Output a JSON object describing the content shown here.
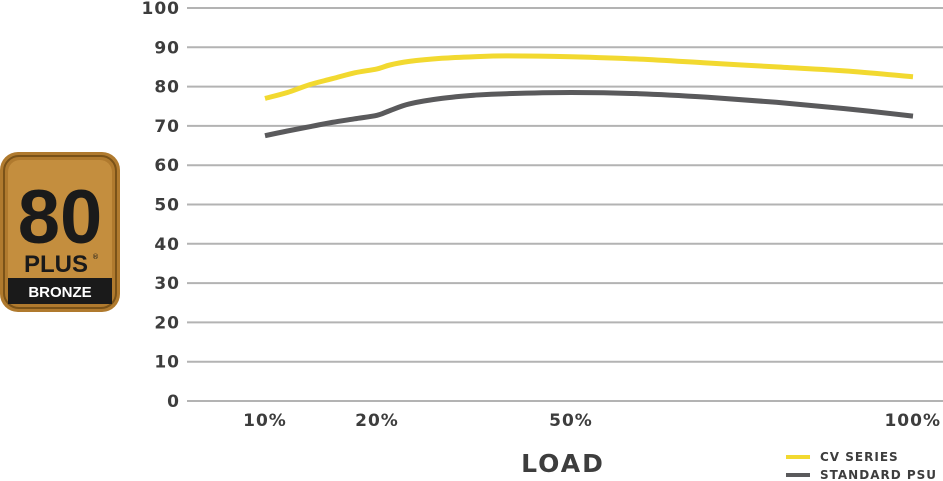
{
  "colors": {
    "cv_series": "#f2d930",
    "standard_psu": "#5a5a5c",
    "grid": "#b3b3b3",
    "text": "#3d3d3d",
    "badge_bronze": "#b07a2e",
    "badge_bronze_light": "#c48e3e",
    "badge_dark": "#1a1a1a"
  },
  "badge": {
    "number": "80",
    "plus": "PLUS",
    "reg": "®",
    "tier": "BRONZE"
  },
  "chart_data": {
    "type": "line",
    "title": "",
    "xlabel": "LOAD",
    "ylabel": "",
    "ylim": [
      0,
      100
    ],
    "yticks": [
      "0",
      "10",
      "20",
      "30",
      "40",
      "50",
      "60",
      "70",
      "80",
      "90",
      "100"
    ],
    "grid": true,
    "legend_position": "bottom-right",
    "x_tick_labels": [
      "10%",
      "20%",
      "50%",
      "100%"
    ],
    "series": [
      {
        "name": "CV SERIES",
        "color": "#f2d930",
        "x": [
          10,
          12,
          14,
          16,
          18,
          20,
          22,
          25,
          30,
          35,
          40,
          50,
          60,
          70,
          80,
          90,
          100
        ],
        "y": [
          77,
          78.5,
          80.5,
          82,
          83.5,
          84.5,
          85.5,
          86.4,
          87.2,
          87.6,
          87.8,
          87.6,
          87.0,
          86.0,
          85.0,
          84.0,
          82.5
        ]
      },
      {
        "name": "STANDARD PSU",
        "color": "#5a5a5c",
        "x": [
          10,
          12,
          14,
          16,
          18,
          20,
          22,
          25,
          30,
          35,
          40,
          50,
          60,
          70,
          80,
          90,
          100
        ],
        "y": [
          67.5,
          68.7,
          69.8,
          70.9,
          71.8,
          72.7,
          73.9,
          75.6,
          77.0,
          77.8,
          78.2,
          78.5,
          78.2,
          77.3,
          76.0,
          74.4,
          72.5
        ]
      }
    ]
  }
}
